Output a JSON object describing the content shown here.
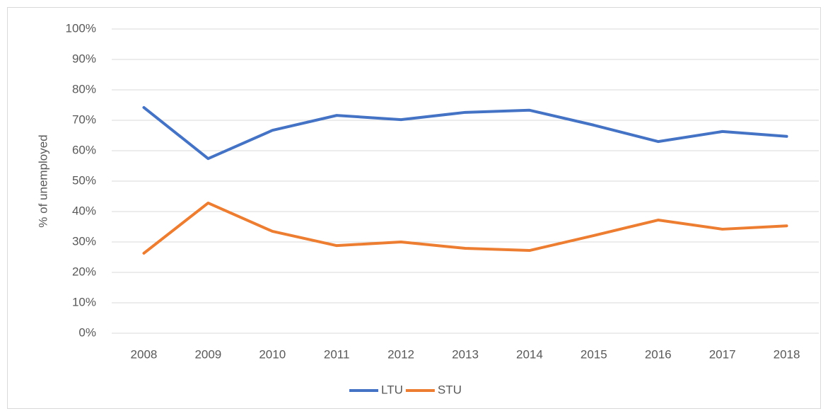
{
  "chart_data": {
    "type": "line",
    "y_label": "% of unemployed",
    "categories": [
      "2008",
      "2009",
      "2010",
      "2011",
      "2012",
      "2013",
      "2014",
      "2015",
      "2016",
      "2017",
      "2018"
    ],
    "series": [
      {
        "name": "LTU",
        "color": "#4472c4",
        "values": [
          74.2,
          57.4,
          66.7,
          71.6,
          70.2,
          72.6,
          73.3,
          68.4,
          63.0,
          66.3,
          64.7
        ]
      },
      {
        "name": "STU",
        "color": "#ed7d31",
        "values": [
          26.3,
          42.8,
          33.5,
          28.8,
          30.0,
          27.9,
          27.2,
          32.1,
          37.2,
          34.2,
          35.3
        ]
      }
    ],
    "ylim": [
      0,
      100
    ],
    "yticks": [
      {
        "value": 0,
        "label": "0%"
      },
      {
        "value": 10,
        "label": "10%"
      },
      {
        "value": 20,
        "label": "20%"
      },
      {
        "value": 30,
        "label": "30%"
      },
      {
        "value": 40,
        "label": "40%"
      },
      {
        "value": 50,
        "label": "50%"
      },
      {
        "value": 60,
        "label": "60%"
      },
      {
        "value": 70,
        "label": "70%"
      },
      {
        "value": 80,
        "label": "80%"
      },
      {
        "value": 90,
        "label": "90%"
      },
      {
        "value": 100,
        "label": "100%"
      }
    ],
    "grid": true,
    "legend": "bottom"
  }
}
